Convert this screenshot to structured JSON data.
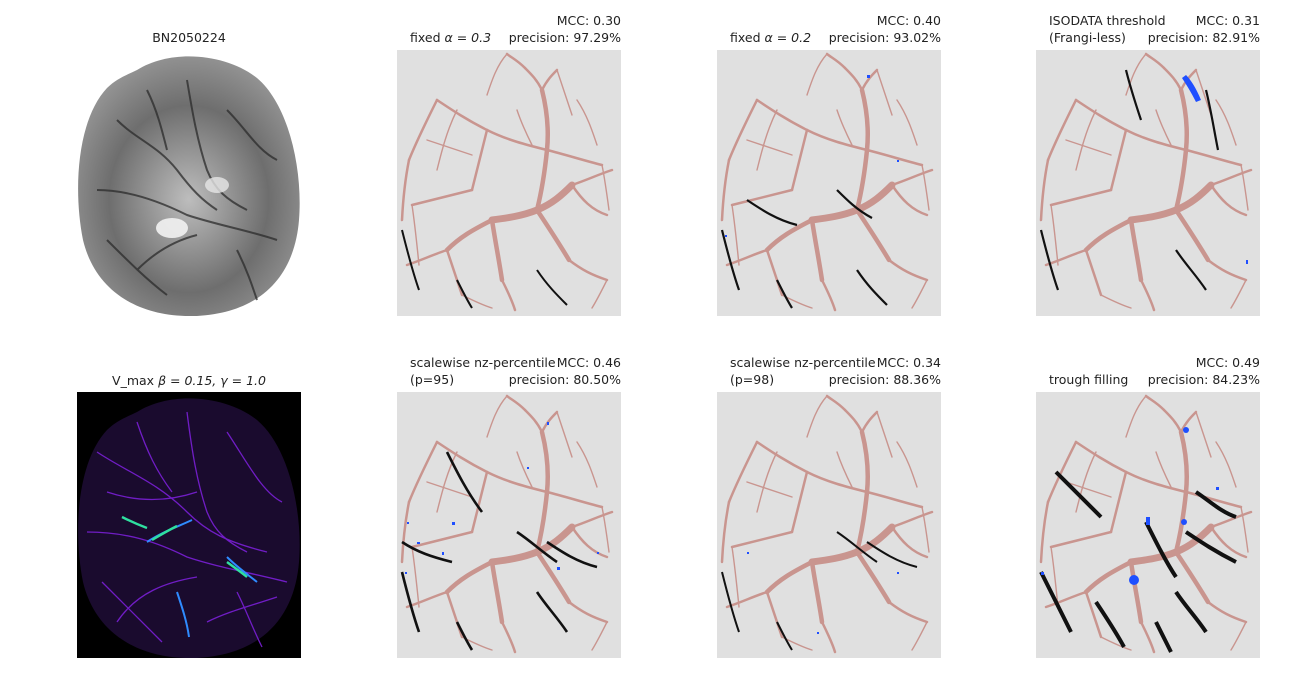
{
  "panels": [
    {
      "id": "p1",
      "center_title": "BN2050224"
    },
    {
      "id": "p2",
      "right_line1": "MCC: 0.30",
      "left_line2": "fixed",
      "param": "α = 0.3",
      "right_line2": "precision: 97.29%"
    },
    {
      "id": "p3",
      "right_line1": "MCC: 0.40",
      "left_line2": "fixed",
      "param": "α = 0.2",
      "right_line2": "precision: 93.02%"
    },
    {
      "id": "p4",
      "left_line1": "ISODATA threshold",
      "right_line1": "MCC: 0.31",
      "left_line2": "(Frangi-less)",
      "right_line2": "precision: 82.91%"
    },
    {
      "id": "p5",
      "center_title_prefix": "V_max",
      "param": "β = 0.15, γ = 1.0"
    },
    {
      "id": "p6",
      "left_line1": "scalewise nz-percentile",
      "right_line1": "MCC: 0.46",
      "left_line2": "(p=95)",
      "right_line2": "precision: 80.50%"
    },
    {
      "id": "p7",
      "left_line1": "scalewise nz-percentile",
      "right_line1": "MCC: 0.34",
      "left_line2": "(p=98)",
      "right_line2": "precision: 88.36%"
    },
    {
      "id": "p8",
      "right_line1": "MCC: 0.49",
      "left_line2": "trough filling",
      "right_line2": "precision: 84.23%"
    }
  ],
  "colors": {
    "panel_bg": "#e0e0e0",
    "vessel_truth": "#c9958f",
    "true_positive": "#111111",
    "false_positive": "#1f4fff",
    "heatmap_bg": "#000000"
  }
}
